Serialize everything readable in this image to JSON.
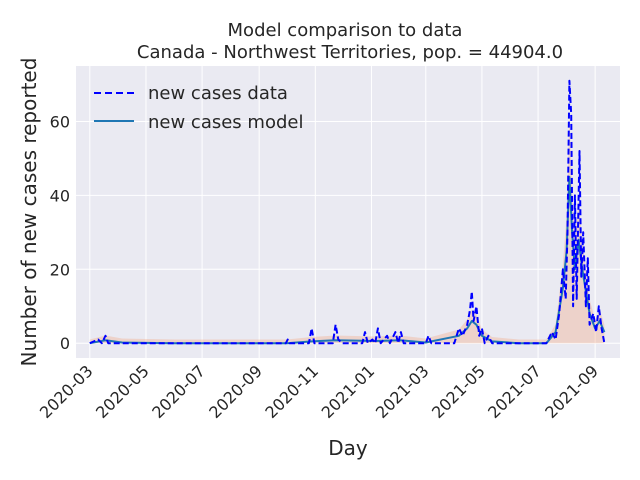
{
  "chart_data": {
    "type": "line",
    "title": "Model comparison to data",
    "subtitle": "Canada - Northwest Territories, pop. = 44904.0",
    "xlabel": "Day",
    "ylabel": "Number of new cases reported",
    "x_range": [
      "2020-02-15",
      "2021-09-28"
    ],
    "ylim": [
      -4,
      75
    ],
    "y_ticks": [
      0,
      20,
      40,
      60
    ],
    "x_ticks": [
      "2020-03",
      "2020-05",
      "2020-07",
      "2020-09",
      "2020-11",
      "2021-01",
      "2021-03",
      "2021-05",
      "2021-07",
      "2021-09"
    ],
    "grid": true,
    "legend_position": "top-left",
    "series": [
      {
        "name": "new cases data",
        "style": "dashed",
        "color": "#0000ff",
        "points": [
          [
            "2020-03-01",
            0
          ],
          [
            "2020-03-10",
            1
          ],
          [
            "2020-03-14",
            0
          ],
          [
            "2020-03-18",
            2
          ],
          [
            "2020-03-21",
            0
          ],
          [
            "2020-04-10",
            0
          ],
          [
            "2020-09-30",
            0
          ],
          [
            "2020-10-02",
            1
          ],
          [
            "2020-10-04",
            0
          ],
          [
            "2020-10-25",
            0
          ],
          [
            "2020-10-28",
            4
          ],
          [
            "2020-10-31",
            0
          ],
          [
            "2020-11-20",
            0
          ],
          [
            "2020-11-23",
            5
          ],
          [
            "2020-11-26",
            1
          ],
          [
            "2020-11-30",
            0
          ],
          [
            "2020-12-22",
            0
          ],
          [
            "2020-12-25",
            3
          ],
          [
            "2020-12-28",
            0
          ],
          [
            "2021-01-02",
            1
          ],
          [
            "2021-01-05",
            0
          ],
          [
            "2021-01-08",
            4
          ],
          [
            "2021-01-11",
            0
          ],
          [
            "2021-01-18",
            2
          ],
          [
            "2021-01-21",
            0
          ],
          [
            "2021-01-27",
            3
          ],
          [
            "2021-01-30",
            0
          ],
          [
            "2021-02-02",
            3
          ],
          [
            "2021-02-05",
            0
          ],
          [
            "2021-03-01",
            0
          ],
          [
            "2021-03-04",
            2
          ],
          [
            "2021-03-07",
            0
          ],
          [
            "2021-04-01",
            0
          ],
          [
            "2021-04-06",
            4
          ],
          [
            "2021-04-10",
            2
          ],
          [
            "2021-04-15",
            5
          ],
          [
            "2021-04-18",
            9
          ],
          [
            "2021-04-20",
            14
          ],
          [
            "2021-04-22",
            6
          ],
          [
            "2021-04-25",
            10
          ],
          [
            "2021-04-28",
            2
          ],
          [
            "2021-05-01",
            4
          ],
          [
            "2021-05-04",
            0
          ],
          [
            "2021-05-08",
            2
          ],
          [
            "2021-05-12",
            0
          ],
          [
            "2021-07-10",
            0
          ],
          [
            "2021-07-16",
            3
          ],
          [
            "2021-07-20",
            1
          ],
          [
            "2021-07-24",
            8
          ],
          [
            "2021-07-28",
            20
          ],
          [
            "2021-07-31",
            12
          ],
          [
            "2021-08-02",
            30
          ],
          [
            "2021-08-04",
            71
          ],
          [
            "2021-08-06",
            62
          ],
          [
            "2021-08-08",
            10
          ],
          [
            "2021-08-10",
            40
          ],
          [
            "2021-08-12",
            12
          ],
          [
            "2021-08-15",
            52
          ],
          [
            "2021-08-17",
            18
          ],
          [
            "2021-08-19",
            30
          ],
          [
            "2021-08-22",
            10
          ],
          [
            "2021-08-24",
            23
          ],
          [
            "2021-08-26",
            5
          ],
          [
            "2021-08-30",
            8
          ],
          [
            "2021-09-02",
            3
          ],
          [
            "2021-09-05",
            10
          ],
          [
            "2021-09-08",
            4
          ],
          [
            "2021-09-11",
            0
          ]
        ]
      },
      {
        "name": "new cases model",
        "style": "solid",
        "color": "#1f77b4",
        "points": [
          [
            "2020-03-01",
            0
          ],
          [
            "2020-03-18",
            0.8
          ],
          [
            "2020-04-05",
            0.2
          ],
          [
            "2020-06-01",
            0
          ],
          [
            "2020-10-01",
            0
          ],
          [
            "2020-10-28",
            0.5
          ],
          [
            "2020-11-23",
            0.8
          ],
          [
            "2021-01-05",
            0.6
          ],
          [
            "2021-02-01",
            0.8
          ],
          [
            "2021-03-01",
            0.2
          ],
          [
            "2021-04-06",
            2
          ],
          [
            "2021-04-15",
            4
          ],
          [
            "2021-04-20",
            6
          ],
          [
            "2021-04-25",
            5
          ],
          [
            "2021-05-01",
            2
          ],
          [
            "2021-05-12",
            0.5
          ],
          [
            "2021-06-10",
            0
          ],
          [
            "2021-07-10",
            0
          ],
          [
            "2021-07-20",
            3
          ],
          [
            "2021-07-28",
            15
          ],
          [
            "2021-08-01",
            25
          ],
          [
            "2021-08-04",
            45
          ],
          [
            "2021-08-07",
            30
          ],
          [
            "2021-08-10",
            20
          ],
          [
            "2021-08-14",
            28
          ],
          [
            "2021-08-18",
            20
          ],
          [
            "2021-08-22",
            14
          ],
          [
            "2021-08-26",
            8
          ],
          [
            "2021-09-01",
            4
          ],
          [
            "2021-09-06",
            6
          ],
          [
            "2021-09-11",
            3
          ]
        ]
      }
    ]
  }
}
